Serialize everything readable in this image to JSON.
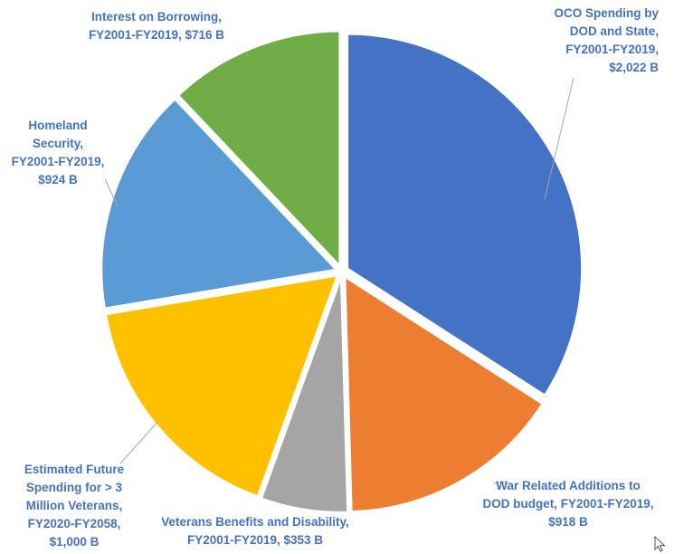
{
  "chart_data": {
    "type": "pie",
    "title": "",
    "unit": "B",
    "slices": [
      {
        "name": "OCO Spending by DOD and State, FY2001-FY2019",
        "value": 2022,
        "color": "#4472c4",
        "label_lines": [
          "OCO Spending by",
          "DOD and State,",
          "FY2001-FY2019,",
          "$2,022 B"
        ]
      },
      {
        "name": "War Related Additions to DOD budget, FY2001-FY2019",
        "value": 918,
        "color": "#ed7d31",
        "label_lines": [
          "War Related Additions to",
          "DOD budget, FY2001-FY2019,",
          "$918 B"
        ]
      },
      {
        "name": "Veterans Benefits and Disability, FY2001-FY2019",
        "value": 353,
        "color": "#a5a5a5",
        "label_lines": [
          "Veterans Benefits and Disability,",
          "FY2001-FY2019,  $353 B"
        ]
      },
      {
        "name": "Estimated Future Spending for > 3 Million Veterans, FY2020-FY2058",
        "value": 1000,
        "color": "#ffc000",
        "label_lines": [
          "Estimated Future",
          "Spending for > 3",
          "Million Veterans,",
          "FY2020-FY2058,",
          "$1,000 B"
        ]
      },
      {
        "name": "Homeland Security, FY2001-FY2019",
        "value": 924,
        "color": "#5b9bd5",
        "label_lines": [
          "Homeland",
          "Security,",
          "FY2001-FY2019,",
          "$924 B"
        ]
      },
      {
        "name": "Interest on Borrowing, FY2001-FY2019",
        "value": 716,
        "color": "#70ad47",
        "label_lines": [
          "Interest on Borrowing,",
          "FY2001-FY2019,  $716 B"
        ]
      }
    ],
    "legend": "none",
    "label_color": "#4472c4",
    "leader_line_color": "#a6a6a6"
  },
  "cursor": {
    "icon": "mouse-pointer-icon"
  }
}
